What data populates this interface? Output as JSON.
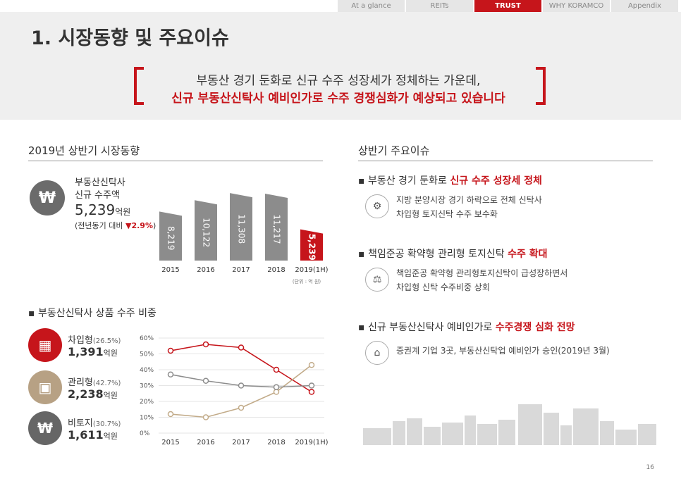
{
  "nav": [
    {
      "label": "At a glance",
      "active": false
    },
    {
      "label": "REITs",
      "active": false
    },
    {
      "label": "TRUST",
      "active": true
    },
    {
      "label": "WHY KORAMCO",
      "active": false
    },
    {
      "label": "Appendix",
      "active": false
    }
  ],
  "page_title": "1. 시장동향 및 주요이슈",
  "banner": {
    "line1": "부동산 경기 둔화로 신규 수주 성장세가 정체하는 가운데,",
    "line2": "신규 부동산신탁사 예비인가로 수주 경쟁심화가 예상되고 있습니다"
  },
  "left_title": "2019년 상반기 시장동향",
  "right_title": "상반기 주요이슈",
  "orders": {
    "label1": "부동산신탁사",
    "label2": "신규 수주액",
    "value": "5,239",
    "unit": "억원",
    "yoy_prefix": "(전년동기 대비",
    "yoy_value": "▼2.9%",
    "yoy_suffix": ")",
    "unit_note": "(단위 : 억 원)"
  },
  "product_title": "부동산신탁사 상품 수주 비중",
  "products": [
    {
      "name": "차입형",
      "pct": "(26.5%)",
      "amount": "1,391",
      "unit": "억원",
      "color": "#c6151b",
      "icon": "building-icon",
      "glyph": "▦"
    },
    {
      "name": "관리형",
      "pct": "(42.7%)",
      "amount": "2,238",
      "unit": "억원",
      "color": "#b7a184",
      "icon": "money-icon",
      "glyph": "▣"
    },
    {
      "name": "비토지",
      "pct": "(30.7%)",
      "amount": "1,611",
      "unit": "억원",
      "color": "#666666",
      "icon": "won-cycle-icon",
      "glyph": "₩"
    }
  ],
  "issues": [
    {
      "head_plain": "부동산 경기 둔화로 ",
      "head_red": "신규 수주 성장세 정체",
      "icon": "gear-icon",
      "glyph": "⚙",
      "lines": [
        "지방 분양시장 경기 하락으로 전체 신탁사",
        "차입형 토지신탁 수주 보수화"
      ]
    },
    {
      "head_plain": "책임준공 확약형 관리형 토지신탁 ",
      "head_red": "수주 확대",
      "icon": "scale-icon",
      "glyph": "⚖",
      "lines": [
        "책임준공 확약형 관리형토지신탁이 급성장하면서",
        "차입형 신탁 수주비중 상회"
      ]
    },
    {
      "head_plain": "신규 부동산신탁사 예비인가로 ",
      "head_red": "수주경쟁 심화 전망",
      "icon": "building-approve-icon",
      "glyph": "⌂",
      "lines": [
        "증권계 기업 3곳, 부동산신탁업 예비인가 승인(2019년 3월)"
      ]
    }
  ],
  "page_number": "16",
  "colors": {
    "accent": "#c6151b",
    "gray_bar": "#8c8c8c",
    "beige": "#b7a184"
  },
  "chart_data": [
    {
      "type": "bar",
      "title": "부동산신탁사 신규 수주액",
      "categories": [
        "2015",
        "2016",
        "2017",
        "2018",
        "2019(1H)"
      ],
      "values": [
        8219,
        10122,
        11308,
        11217,
        5239
      ],
      "value_labels": [
        "8,219",
        "10,122",
        "11,308",
        "11,217",
        "5,239"
      ],
      "highlight_index": 4,
      "ylabel": "억 원"
    },
    {
      "type": "line",
      "title": "부동산신탁사 상품 수주 비중",
      "categories": [
        "2015",
        "2016",
        "2017",
        "2018",
        "2019(1H)"
      ],
      "ylim": [
        0,
        60
      ],
      "yticks": [
        "0%",
        "10%",
        "20%",
        "30%",
        "40%",
        "50%",
        "60%"
      ],
      "series": [
        {
          "name": "차입형",
          "color": "#c6151b",
          "values": [
            52,
            56,
            54,
            40,
            26
          ]
        },
        {
          "name": "관리형",
          "color": "#c2ab89",
          "values": [
            12,
            10,
            16,
            26,
            43
          ]
        },
        {
          "name": "비토지",
          "color": "#8c8c8c",
          "values": [
            37,
            33,
            30,
            29,
            30
          ]
        }
      ]
    }
  ]
}
